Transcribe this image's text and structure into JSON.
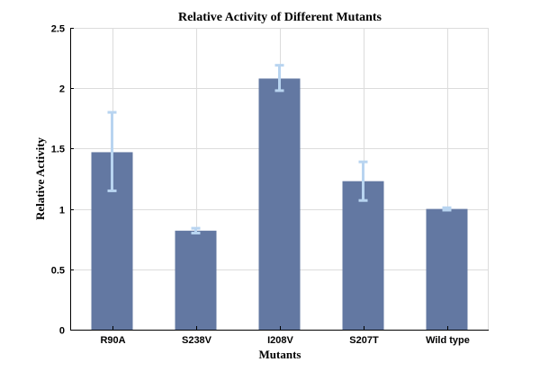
{
  "chart_data": {
    "type": "bar",
    "title": "Relative Activity of Different Mutants",
    "xlabel": "Mutants",
    "ylabel": "Relative Activity",
    "categories": [
      "R90A",
      "S238V",
      "I208V",
      "S207T",
      "Wild type"
    ],
    "values": [
      1.47,
      0.82,
      2.08,
      1.23,
      1.0
    ],
    "error_low": [
      1.15,
      0.8,
      1.98,
      1.07,
      0.99
    ],
    "error_high": [
      1.8,
      0.84,
      2.19,
      1.39,
      1.01
    ],
    "ylim": [
      0,
      2.5
    ],
    "yticks": [
      0,
      0.5,
      1,
      1.5,
      2,
      2.5
    ],
    "ytick_labels": [
      "0",
      "0.5",
      "1",
      "1.5",
      "2",
      "2.5"
    ],
    "grid": true,
    "bar_color": "#6378a2",
    "error_color": "#b8d4f0"
  }
}
